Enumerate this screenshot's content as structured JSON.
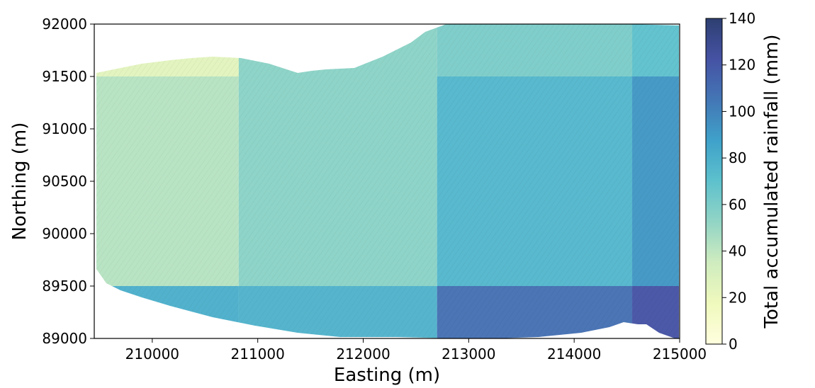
{
  "chart_data": {
    "type": "heatmap",
    "title": "",
    "xlabel": "Easting (m)",
    "ylabel": "Northing (m)",
    "xlim": [
      209450,
      215000
    ],
    "ylim": [
      89000,
      92000
    ],
    "x_ticks": [
      210000,
      211000,
      212000,
      213000,
      214000,
      215000
    ],
    "y_ticks": [
      89000,
      89500,
      90000,
      90500,
      91000,
      91500,
      92000
    ],
    "colorbar": {
      "label": "Total accumulated rainfall (mm)",
      "range": [
        0,
        140
      ],
      "ticks": [
        0,
        20,
        40,
        60,
        80,
        100,
        120,
        140
      ],
      "colormap": "YlGnBu",
      "colors": [
        "#ffffd9",
        "#edf8b1",
        "#c7e9b4",
        "#7fcdbb",
        "#41b6c4",
        "#1d91c0",
        "#225ea8",
        "#253494",
        "#081d58"
      ]
    },
    "grid": false,
    "x_edges": [
      209450,
      210820,
      212700,
      214550,
      215000
    ],
    "y_edges": [
      92000,
      91500,
      89500,
      89000
    ],
    "cells": [
      {
        "x0": 209450,
        "x1": 210820,
        "y0": 91500,
        "y1": 92000,
        "value": 25
      },
      {
        "x0": 210820,
        "x1": 212700,
        "y0": 91500,
        "y1": 92000,
        "value": 55
      },
      {
        "x0": 212700,
        "x1": 214550,
        "y0": 91500,
        "y1": 92000,
        "value": 60
      },
      {
        "x0": 214550,
        "x1": 215000,
        "y0": 91500,
        "y1": 92000,
        "value": 70
      },
      {
        "x0": 209450,
        "x1": 210820,
        "y0": 89500,
        "y1": 91500,
        "value": 42
      },
      {
        "x0": 210820,
        "x1": 212700,
        "y0": 89500,
        "y1": 91500,
        "value": 55
      },
      {
        "x0": 212700,
        "x1": 214550,
        "y0": 89500,
        "y1": 91500,
        "value": 76
      },
      {
        "x0": 214550,
        "x1": 215000,
        "y0": 89500,
        "y1": 91500,
        "value": 92
      },
      {
        "x0": 209450,
        "x1": 210820,
        "y0": 89000,
        "y1": 89500,
        "value": 80
      },
      {
        "x0": 210820,
        "x1": 212700,
        "y0": 89000,
        "y1": 89500,
        "value": 78
      },
      {
        "x0": 212700,
        "x1": 214550,
        "y0": 89000,
        "y1": 89500,
        "value": 108
      },
      {
        "x0": 214550,
        "x1": 215000,
        "y0": 89000,
        "y1": 89500,
        "value": 122
      }
    ]
  }
}
